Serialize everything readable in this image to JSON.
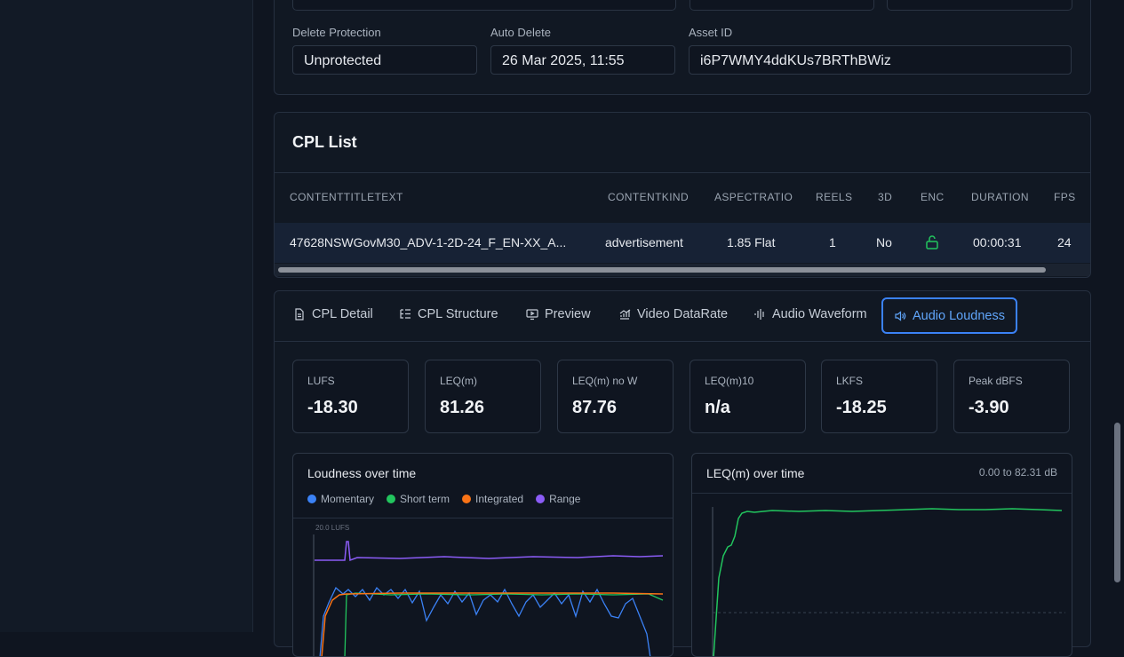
{
  "asset": {
    "delete_protection": {
      "label": "Delete Protection",
      "value": "Unprotected"
    },
    "auto_delete": {
      "label": "Auto Delete",
      "value": "26 Mar 2025, 11:55"
    },
    "asset_id": {
      "label": "Asset ID",
      "value": "i6P7WMY4ddKUs7BRThBWiz"
    }
  },
  "cpl_list": {
    "title": "CPL List",
    "columns": [
      "CONTENTTITLETEXT",
      "CONTENTKIND",
      "ASPECTRATIO",
      "REELS",
      "3D",
      "ENC",
      "DURATION",
      "FPS"
    ],
    "rows": [
      {
        "title": "47628NSWGovM30_ADV-1-2D-24_F_EN-XX_A...",
        "kind": "advertisement",
        "aspect": "1.85 Flat",
        "reels": "1",
        "three_d": "No",
        "enc_icon": "unlock-icon",
        "duration": "00:00:31",
        "fps": "24"
      }
    ]
  },
  "tabs": [
    {
      "label": "CPL Detail",
      "icon": "document-icon"
    },
    {
      "label": "CPL Structure",
      "icon": "list-tree-icon"
    },
    {
      "label": "Preview",
      "icon": "monitor-play-icon"
    },
    {
      "label": "Video DataRate",
      "icon": "chart-icon"
    },
    {
      "label": "Audio Waveform",
      "icon": "waveform-icon"
    },
    {
      "label": "Audio Loudness",
      "icon": "speaker-icon",
      "active": true
    }
  ],
  "stats": [
    {
      "label": "LUFS",
      "value": "-18.30"
    },
    {
      "label": "LEQ(m)",
      "value": "81.26"
    },
    {
      "label": "LEQ(m) no W",
      "value": "87.76"
    },
    {
      "label": "LEQ(m)10",
      "value": "n/a"
    },
    {
      "label": "LKFS",
      "value": "-18.25"
    },
    {
      "label": "Peak dBFS",
      "value": "-3.90"
    }
  ],
  "loudness_chart": {
    "title": "Loudness over time",
    "y_tick_top": "20.0 LUFS",
    "legend": [
      {
        "name": "Momentary",
        "color": "#3b82f6"
      },
      {
        "name": "Short term",
        "color": "#22c55e"
      },
      {
        "name": "Integrated",
        "color": "#f97316"
      },
      {
        "name": "Range",
        "color": "#8b5cf6"
      }
    ]
  },
  "leq_chart": {
    "title": "LEQ(m) over time",
    "range": "0.00 to 82.31 dB",
    "color": "#22c55e"
  }
}
